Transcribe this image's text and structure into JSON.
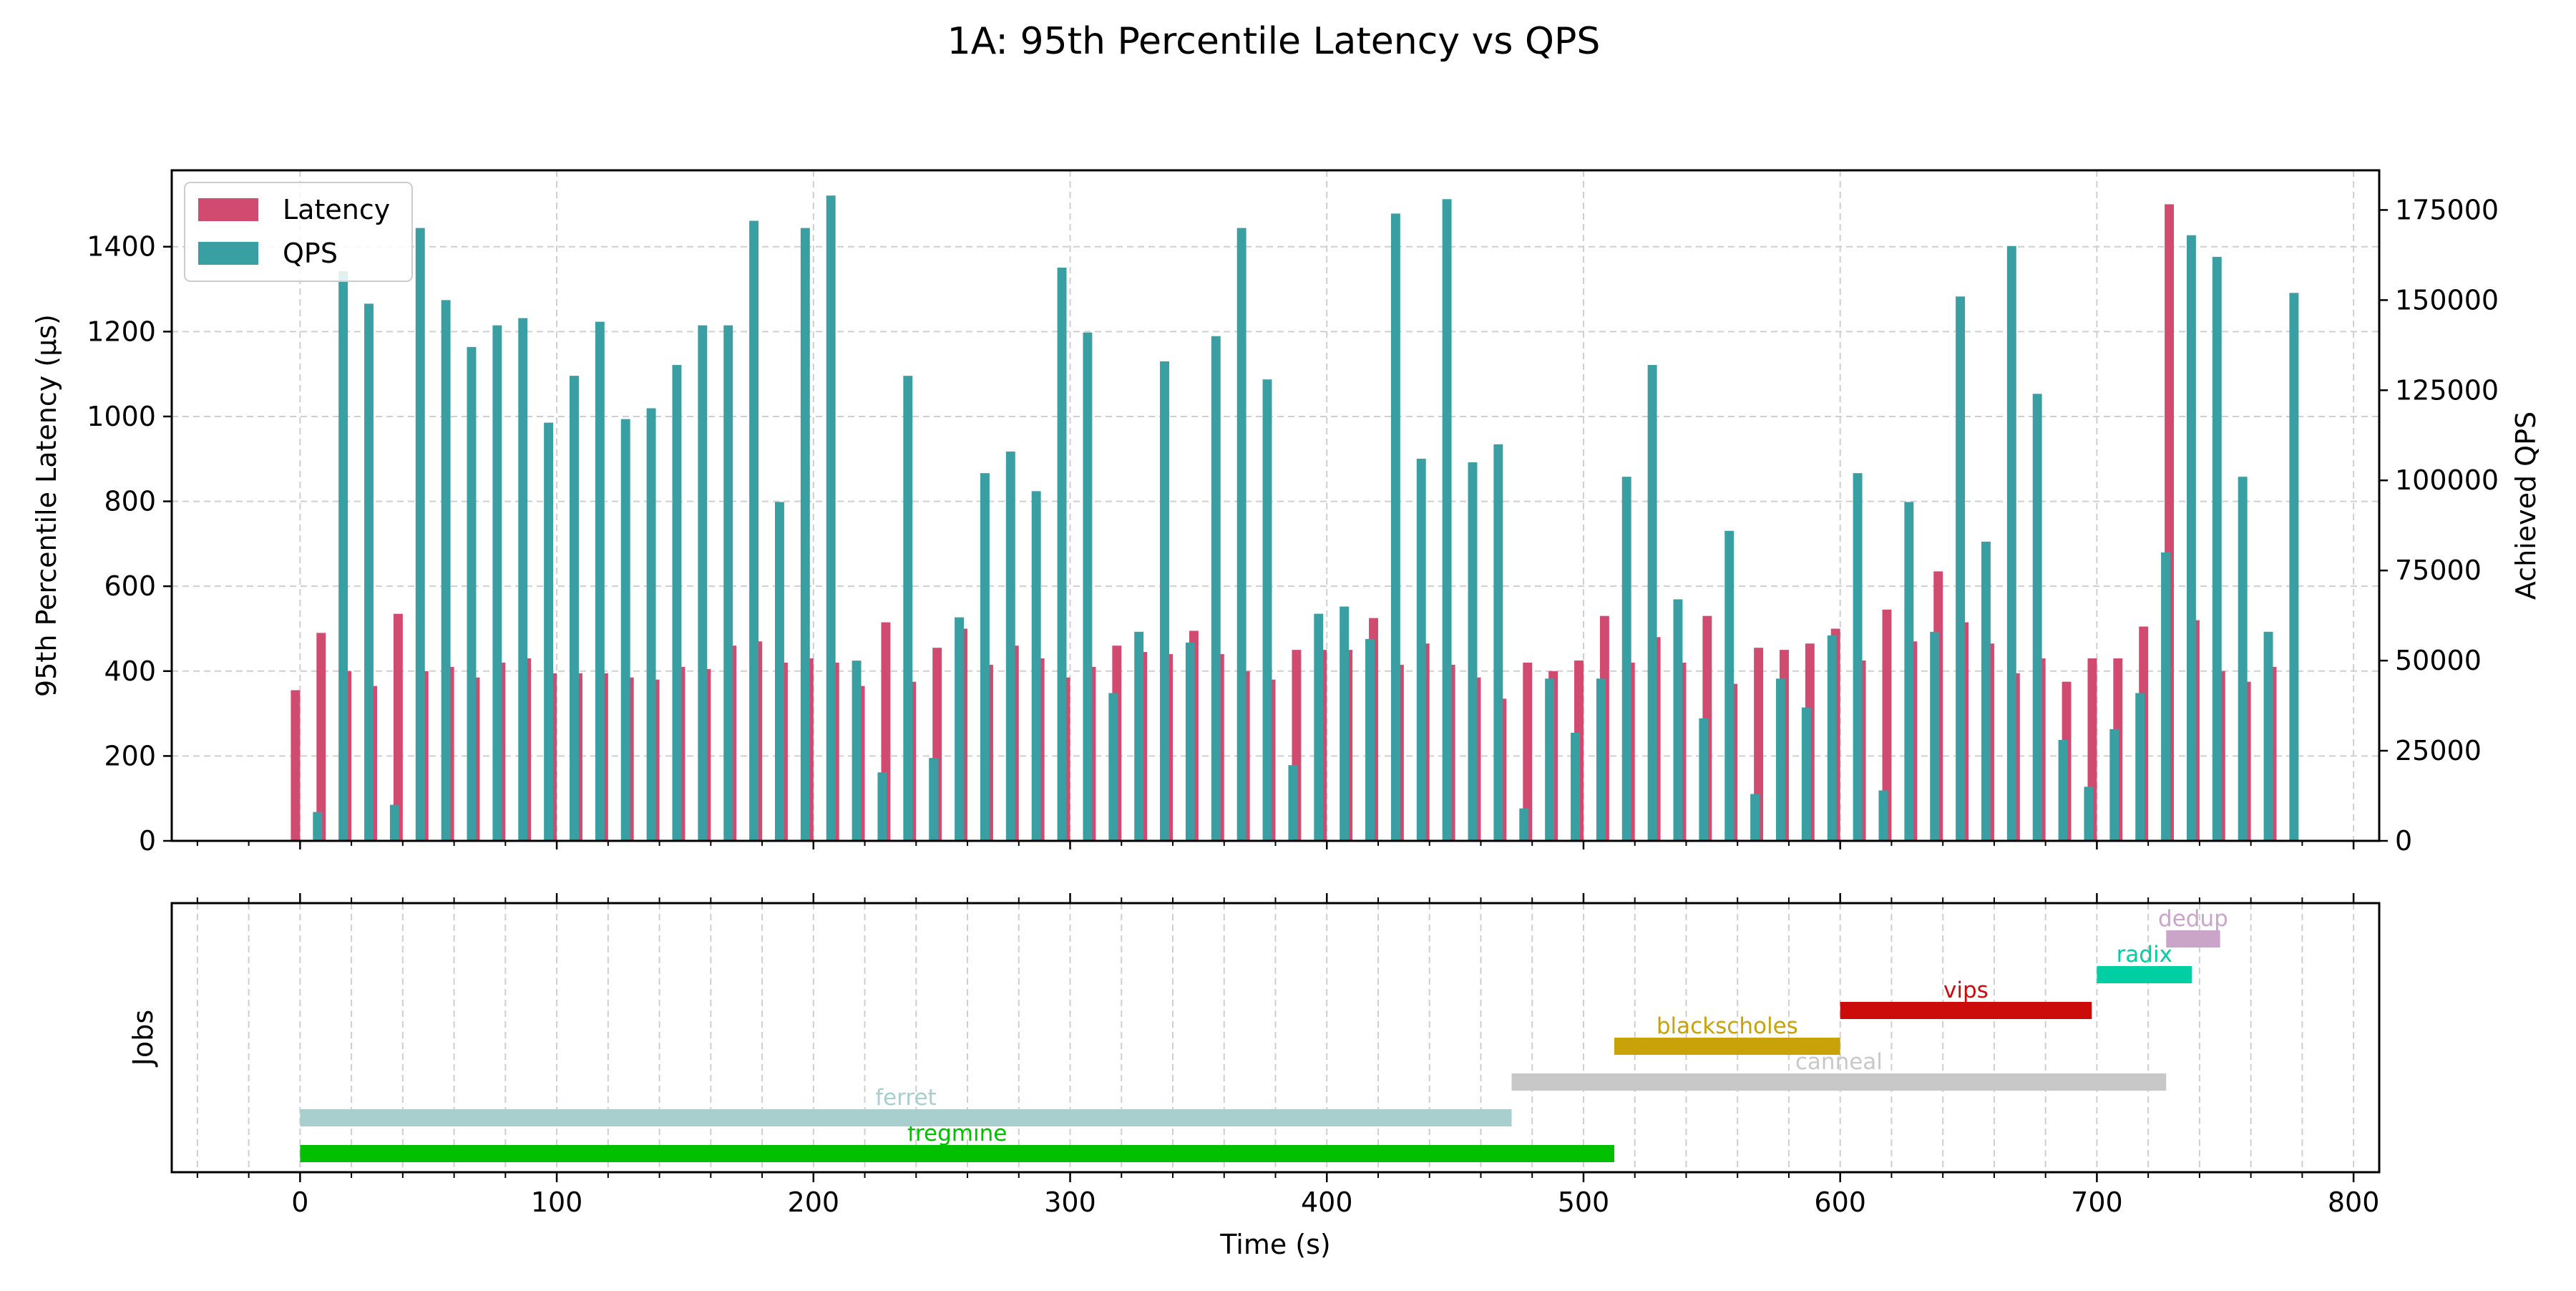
{
  "title": "1A: 95th Percentile Latency vs QPS",
  "chart_data": [
    {
      "type": "bar",
      "xlabel": "",
      "ylabel": "95th Percentile Latency (µs)",
      "y2label": "Achieved QPS",
      "xlim": [
        -50,
        810
      ],
      "ylim": [
        0,
        1580
      ],
      "y2lim": [
        0,
        186000
      ],
      "yticks": [
        0,
        200,
        400,
        600,
        800,
        1000,
        1200,
        1400
      ],
      "y2ticks": [
        0,
        25000,
        50000,
        75000,
        100000,
        125000,
        150000,
        175000
      ],
      "grid": true,
      "legend": "top-left",
      "series": [
        {
          "name": "Latency",
          "color": "#d14a6f",
          "axis": "left",
          "x": [
            0,
            10,
            20,
            30,
            40,
            50,
            60,
            70,
            80,
            90,
            100,
            110,
            120,
            130,
            140,
            150,
            160,
            170,
            180,
            190,
            200,
            210,
            220,
            230,
            240,
            250,
            260,
            270,
            280,
            290,
            300,
            310,
            320,
            330,
            340,
            350,
            360,
            370,
            380,
            390,
            400,
            410,
            420,
            430,
            440,
            450,
            460,
            470,
            480,
            490,
            500,
            510,
            520,
            530,
            540,
            550,
            560,
            570,
            580,
            590,
            600,
            610,
            620,
            630,
            640,
            650,
            660,
            670,
            680,
            690,
            700,
            710,
            720,
            730,
            740,
            750,
            760,
            770
          ],
          "values": [
            355,
            490,
            400,
            365,
            535,
            400,
            410,
            385,
            420,
            430,
            395,
            395,
            395,
            385,
            380,
            410,
            405,
            460,
            470,
            420,
            430,
            420,
            365,
            515,
            375,
            455,
            500,
            415,
            460,
            430,
            385,
            410,
            460,
            445,
            440,
            495,
            440,
            400,
            380,
            450,
            450,
            450,
            525,
            415,
            465,
            415,
            385,
            335,
            420,
            400,
            425,
            530,
            420,
            480,
            420,
            530,
            370,
            455,
            450,
            465,
            500,
            425,
            545,
            470,
            635,
            515,
            465,
            395,
            430,
            375,
            430,
            430,
            505,
            1500,
            520,
            400,
            375,
            410
          ]
        },
        {
          "name": "QPS",
          "color": "#3a9fa3",
          "axis": "right",
          "x": [
            0,
            10,
            20,
            30,
            40,
            50,
            60,
            70,
            80,
            90,
            100,
            110,
            120,
            130,
            140,
            150,
            160,
            170,
            180,
            190,
            200,
            210,
            220,
            230,
            240,
            250,
            260,
            270,
            280,
            290,
            300,
            310,
            320,
            330,
            340,
            350,
            360,
            370,
            380,
            390,
            400,
            410,
            420,
            430,
            440,
            450,
            460,
            470,
            480,
            490,
            500,
            510,
            520,
            530,
            540,
            550,
            560,
            570,
            580,
            590,
            600,
            610,
            620,
            630,
            640,
            650,
            660,
            670,
            680,
            690,
            700,
            710,
            720,
            730,
            740,
            750,
            760,
            770
          ],
          "values": [
            8000,
            158000,
            149000,
            10000,
            170000,
            150000,
            137000,
            143000,
            145000,
            116000,
            129000,
            144000,
            117000,
            120000,
            132000,
            143000,
            143000,
            172000,
            94000,
            170000,
            179000,
            50000,
            19000,
            129000,
            23000,
            62000,
            102000,
            108000,
            97000,
            159000,
            141000,
            41000,
            58000,
            133000,
            55000,
            140000,
            170000,
            128000,
            21000,
            63000,
            65000,
            56000,
            174000,
            106000,
            178000,
            105000,
            110000,
            9000,
            45000,
            30000,
            45000,
            101000,
            132000,
            67000,
            34000,
            86000,
            13000,
            45000,
            37000,
            57000,
            102000,
            14000,
            94000,
            58000,
            151000,
            83000,
            165000,
            124000,
            28000,
            15000,
            31000,
            41000,
            80000,
            168000,
            162000,
            101000,
            58000,
            152000
          ]
        }
      ]
    },
    {
      "type": "gantt",
      "xlabel": "Time (s)",
      "ylabel": "Jobs",
      "xlim": [
        -50,
        810
      ],
      "xticks": [
        0,
        100,
        200,
        300,
        400,
        500,
        600,
        700,
        800
      ],
      "grid": true,
      "jobs": [
        {
          "name": "fregmine",
          "start": 0,
          "end": 512,
          "color": "#00c000"
        },
        {
          "name": "ferret",
          "start": 0,
          "end": 472,
          "color": "#a8cece"
        },
        {
          "name": "canneal",
          "start": 472,
          "end": 727,
          "color": "#c8c8c8"
        },
        {
          "name": "blackscholes",
          "start": 512,
          "end": 600,
          "color": "#c9a108"
        },
        {
          "name": "vips",
          "start": 600,
          "end": 698,
          "color": "#cc0b0b"
        },
        {
          "name": "radix",
          "start": 700,
          "end": 737,
          "color": "#00cfa3"
        },
        {
          "name": "dedup",
          "start": 727,
          "end": 748,
          "color": "#cba4c9"
        }
      ]
    }
  ]
}
